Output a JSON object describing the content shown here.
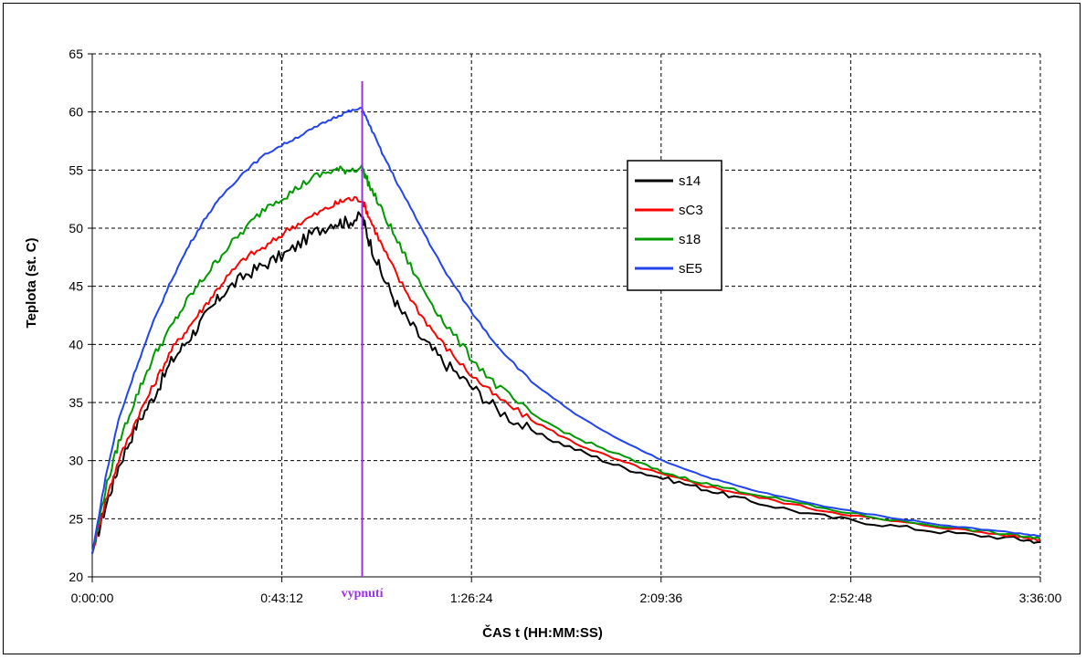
{
  "chart_data": {
    "type": "line",
    "xlabel": "ČAS t (HH:MM:SS)",
    "ylabel": "Teplota (st. C)",
    "x_ticks": [
      "0:00:00",
      "0:43:12",
      "1:26:24",
      "2:09:36",
      "2:52:48",
      "3:36:00"
    ],
    "x_tick_minutes": [
      0,
      43.2,
      86.4,
      129.6,
      172.8,
      216
    ],
    "xlim_minutes": [
      0,
      216
    ],
    "ylim": [
      20,
      65
    ],
    "y_ticks": [
      20,
      25,
      30,
      35,
      40,
      45,
      50,
      55,
      60,
      65
    ],
    "grid": true,
    "legend_position": "upper-middle-right",
    "annotation": {
      "label": "vypnutí",
      "x_minutes": 61.5,
      "color": "#9b30e8"
    },
    "series": [
      {
        "name": "s14",
        "color": "#000000",
        "x_minutes": [
          0,
          3,
          6,
          10,
          14,
          18,
          22,
          26,
          30,
          35,
          40,
          45,
          50,
          55,
          58,
          61.5,
          63,
          66,
          70,
          75,
          80,
          86,
          92,
          100,
          110,
          120,
          130,
          140,
          150,
          165,
          180,
          195,
          210,
          216
        ],
        "values": [
          22,
          26,
          29.5,
          33,
          35.5,
          38.5,
          40.5,
          42.5,
          44.5,
          46,
          47,
          48,
          49.5,
          50.5,
          50.5,
          51,
          49,
          46,
          43,
          40.5,
          38.5,
          36.5,
          34.5,
          32.5,
          31,
          29.5,
          28.5,
          27.5,
          26.5,
          25.3,
          24.5,
          23.8,
          23.3,
          23
        ]
      },
      {
        "name": "sC3",
        "color": "#ff0000",
        "x_minutes": [
          0,
          3,
          6,
          10,
          14,
          18,
          22,
          26,
          30,
          35,
          40,
          45,
          50,
          55,
          58,
          61.5,
          63,
          66,
          70,
          75,
          80,
          86,
          92,
          100,
          110,
          120,
          130,
          140,
          150,
          165,
          180,
          195,
          210,
          216
        ],
        "values": [
          22,
          26.5,
          30,
          33.5,
          36.5,
          39.5,
          41.5,
          43.5,
          45.5,
          47.5,
          48.5,
          50,
          51,
          52,
          52.5,
          52.5,
          51,
          48.5,
          45.5,
          42.5,
          40,
          37.5,
          35.5,
          33.5,
          31.5,
          30,
          28.8,
          27.8,
          27,
          25.8,
          24.9,
          24.2,
          23.5,
          23.2
        ]
      },
      {
        "name": "s18",
        "color": "#009900",
        "x_minutes": [
          0,
          3,
          6,
          10,
          14,
          18,
          22,
          26,
          30,
          35,
          40,
          45,
          50,
          55,
          58,
          61.5,
          63,
          66,
          70,
          75,
          80,
          86,
          92,
          100,
          110,
          120,
          130,
          140,
          150,
          165,
          180,
          195,
          210,
          216
        ],
        "values": [
          22,
          27.5,
          31.5,
          35.5,
          39,
          41.5,
          44,
          46,
          48,
          50,
          52,
          53,
          54.3,
          55,
          55,
          55.2,
          53.8,
          51.5,
          48.5,
          45,
          42,
          39,
          36.5,
          34,
          32,
          30.5,
          29,
          28,
          27.2,
          26,
          25,
          24.3,
          23.6,
          23.3
        ]
      },
      {
        "name": "sE5",
        "color": "#2244ee",
        "x_minutes": [
          0,
          3,
          6,
          10,
          14,
          18,
          22,
          26,
          30,
          35,
          40,
          45,
          50,
          55,
          58,
          61.5,
          63,
          66,
          70,
          75,
          80,
          86,
          92,
          100,
          110,
          120,
          130,
          140,
          150,
          165,
          180,
          195,
          210,
          216
        ],
        "values": [
          22,
          28.5,
          33.5,
          38,
          42,
          45.5,
          48.5,
          51,
          53,
          55,
          56.5,
          57.5,
          58.5,
          59.5,
          60,
          60.3,
          59,
          56.5,
          53.5,
          50,
          46.5,
          43,
          40,
          36.8,
          34,
          31.8,
          30,
          28.6,
          27.5,
          26.2,
          25.2,
          24.4,
          23.8,
          23.5
        ]
      }
    ]
  }
}
